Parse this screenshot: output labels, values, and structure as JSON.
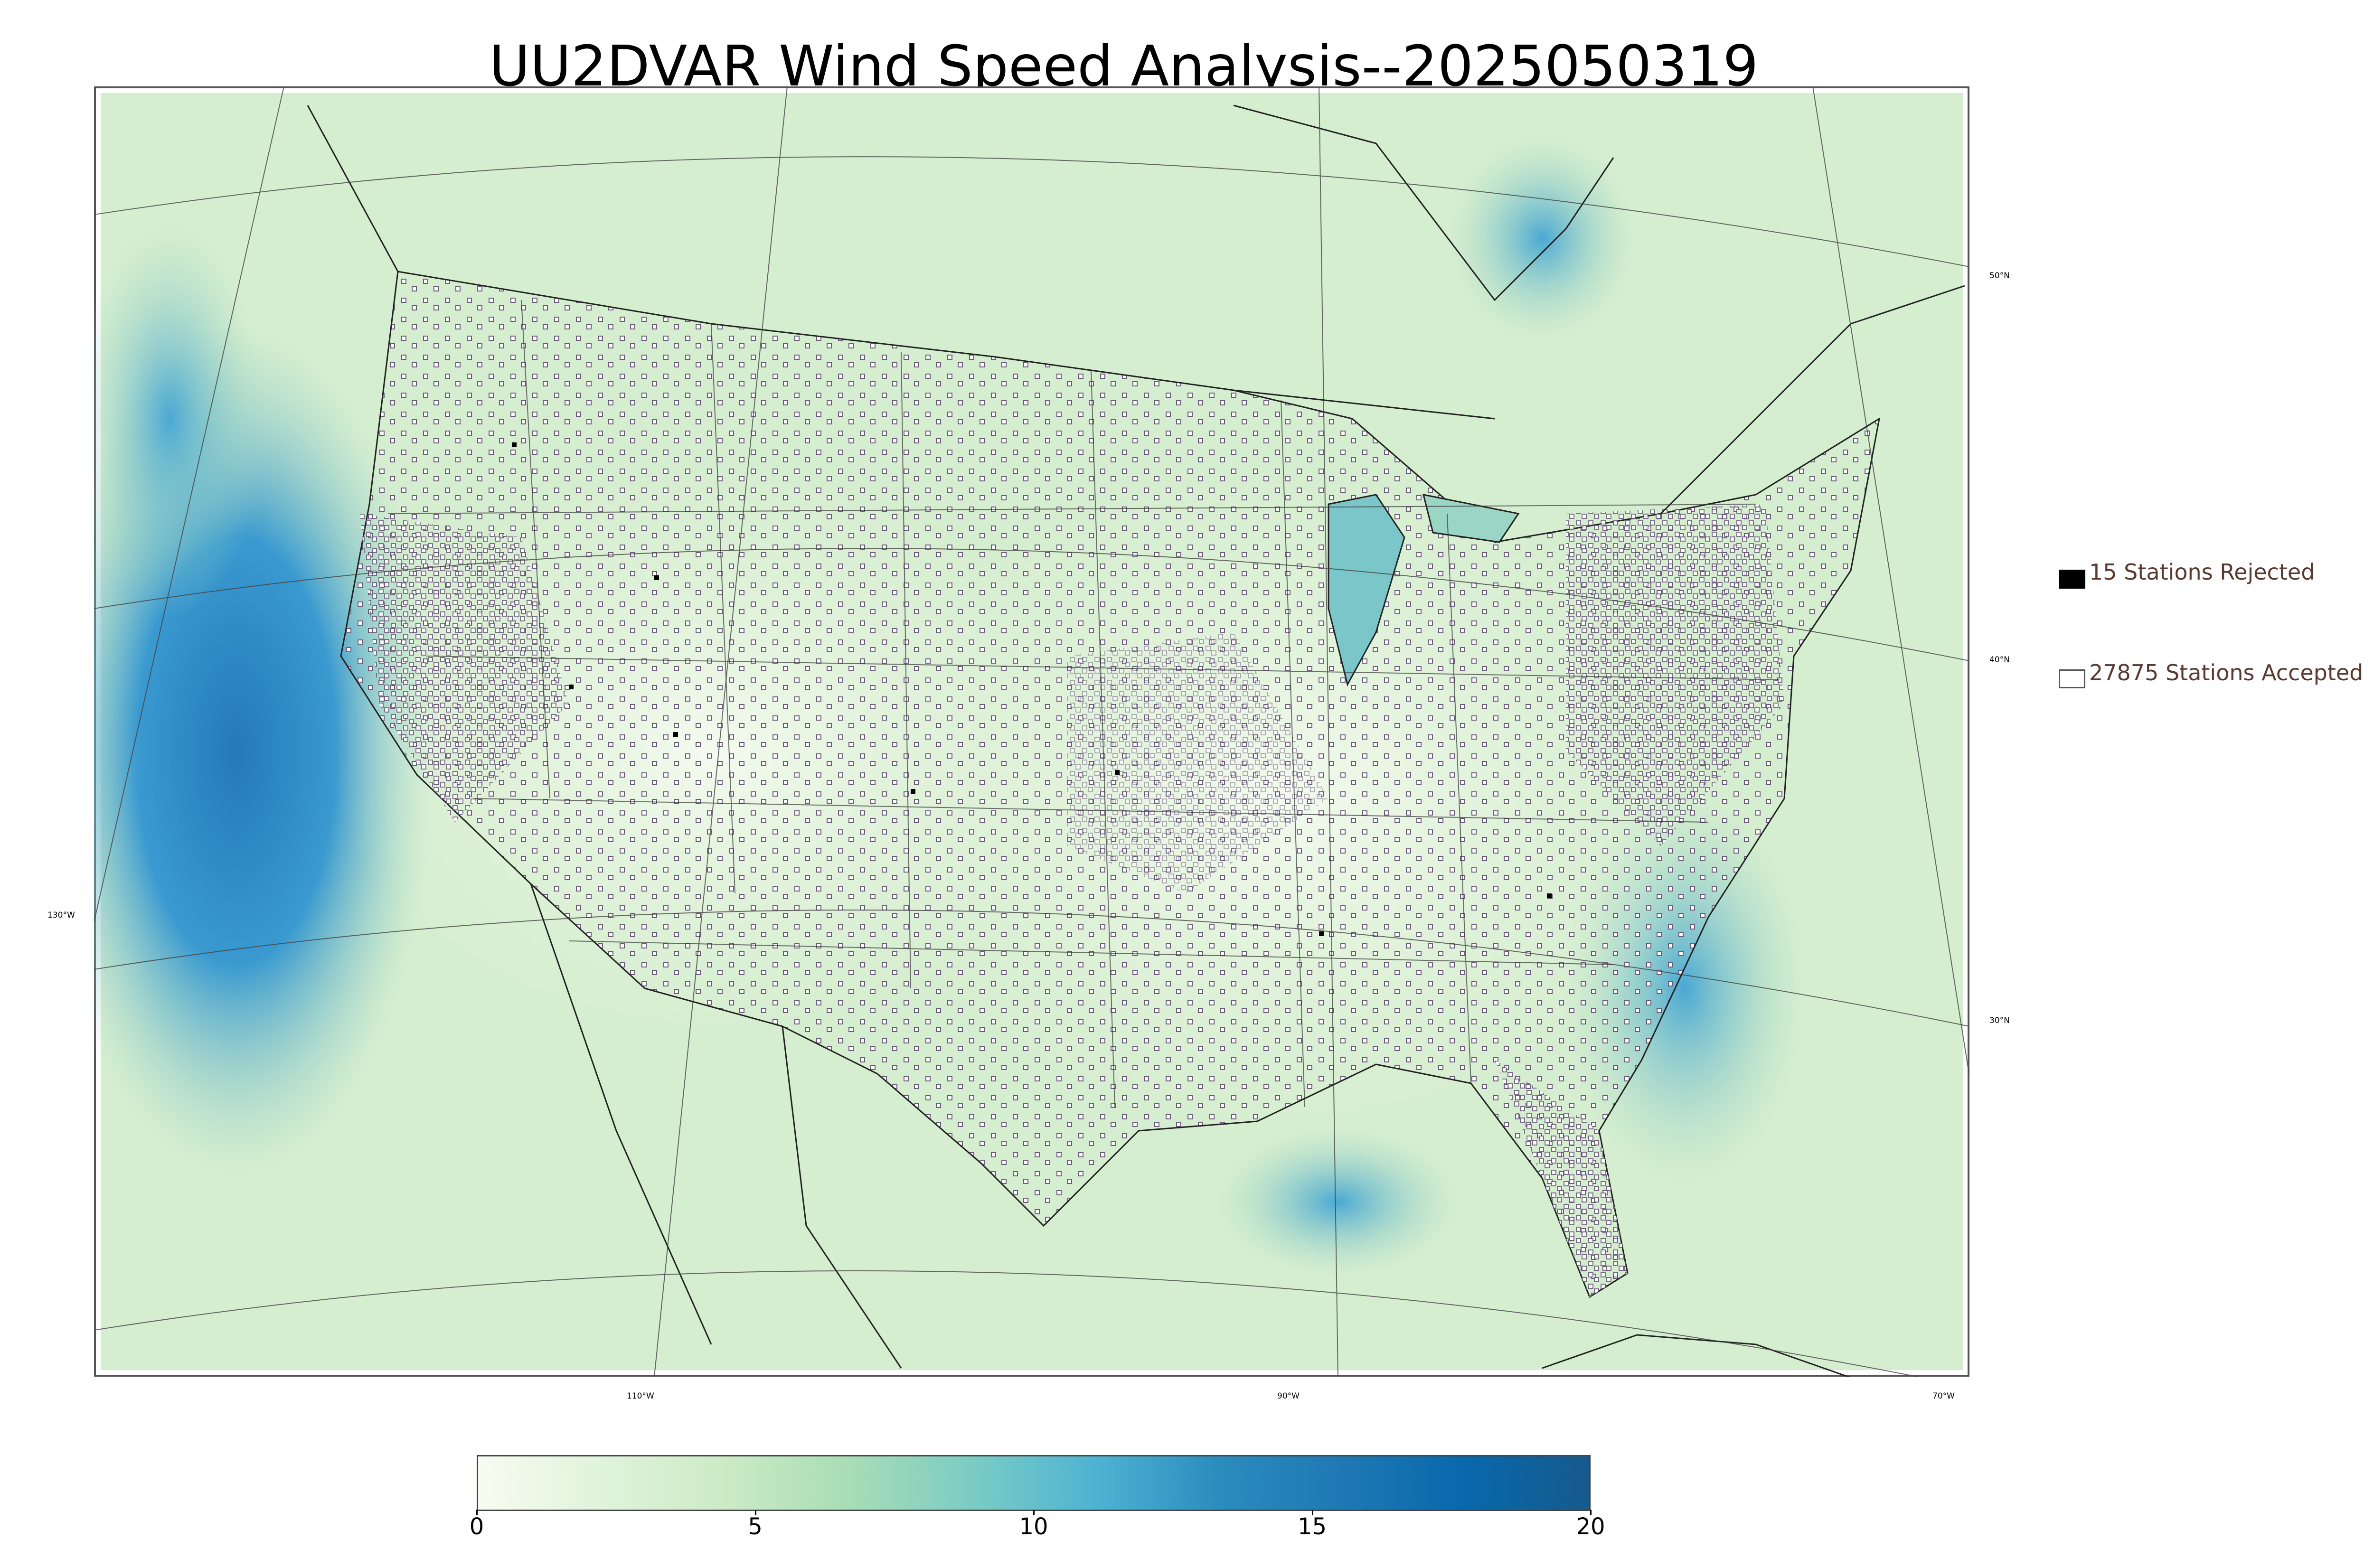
{
  "title": "UU2DVAR Wind Speed Analysis--2025050319",
  "legend": {
    "rejected_label": "15 Stations Rejected",
    "accepted_label": "27875 Stations Accepted",
    "rejected_color": "#000000",
    "accepted_color": "#ffffff"
  },
  "lat_labels": [
    "50°N",
    "40°N",
    "30°N"
  ],
  "lon_labels": [
    "130°W",
    "110°W",
    "90°W",
    "70°W"
  ],
  "colorbar": {
    "ticks": [
      "0",
      "5",
      "10",
      "15",
      "20"
    ],
    "min": 0,
    "max": 20,
    "stops": [
      "#f7fcf0",
      "#e0f3db",
      "#ccebc5",
      "#a8ddb5",
      "#7bccc4",
      "#4eb3d3",
      "#2b8cbe",
      "#1f78b4",
      "#0868ac",
      "#165a8c"
    ]
  },
  "colors": {
    "land": "#d9efd2",
    "ocean_light": "#bde6c6",
    "ocean_strong": "#3c9fcf",
    "ocean_deep": "#2b83c0",
    "border": "#1a1a1a"
  }
}
